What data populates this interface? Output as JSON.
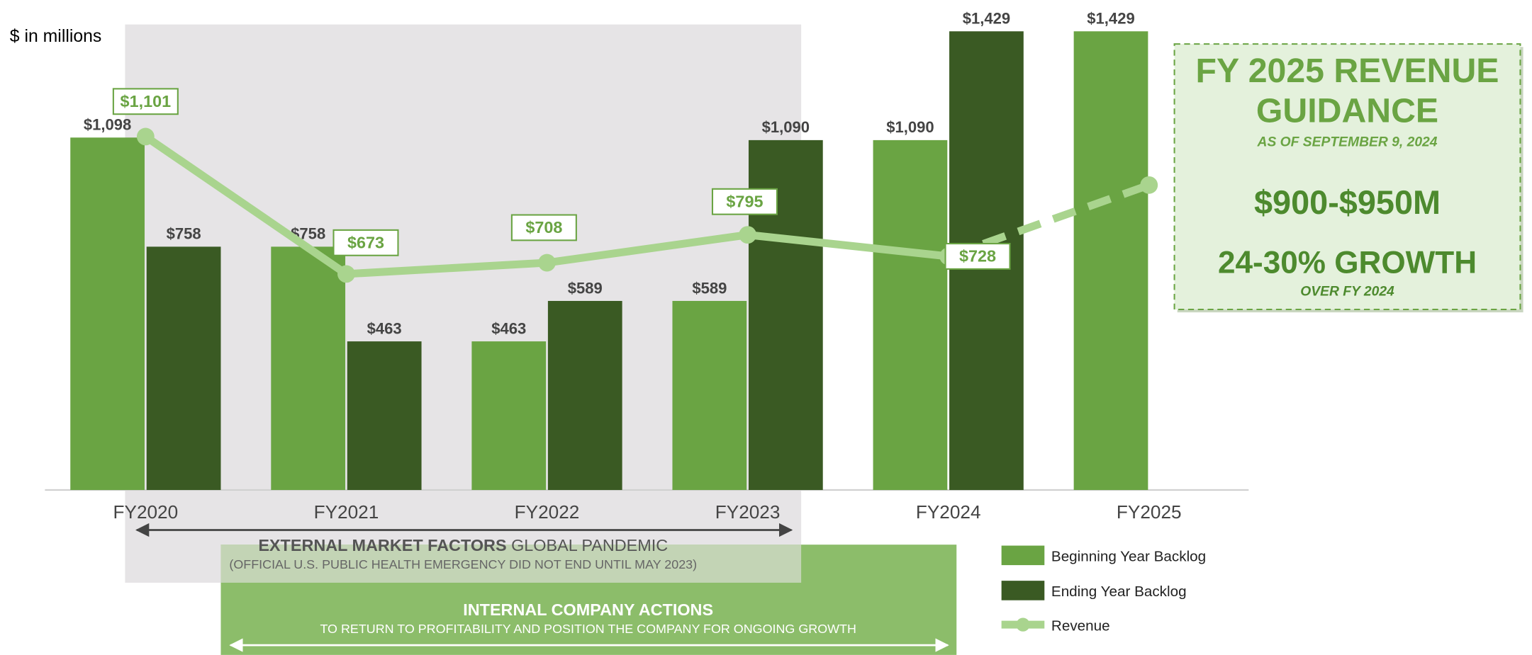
{
  "chart_data": {
    "type": "bar",
    "units_label": "$ in millions",
    "categories": [
      "FY2020",
      "FY2021",
      "FY2022",
      "FY2023",
      "FY2024",
      "FY2025"
    ],
    "ylim": [
      0,
      1500
    ],
    "series": [
      {
        "name": "Beginning Year Backlog",
        "color": "#6aa443",
        "type": "bar",
        "values": [
          1098,
          758,
          463,
          589,
          1090,
          1429
        ],
        "value_labels": [
          "$1,098",
          "$758",
          "$463",
          "$589",
          "$1,090",
          "$1,429"
        ]
      },
      {
        "name": "Ending Year Backlog",
        "color": "#3a5a23",
        "type": "bar",
        "values": [
          758,
          463,
          589,
          1090,
          1429,
          null
        ],
        "value_labels": [
          "$758",
          "$463",
          "$589",
          "$1,090",
          "$1,429",
          null
        ]
      },
      {
        "name": "Revenue",
        "color": "#a9d48e",
        "type": "line",
        "dashed_after_index": 4,
        "values": [
          1101,
          673,
          708,
          795,
          728,
          950
        ],
        "value_labels": [
          "$1,101",
          "$673",
          "$708",
          "$795",
          "$728",
          null
        ]
      }
    ],
    "annotations": {
      "external": {
        "bold": "EXTERNAL MARKET FACTORS",
        "text": "GLOBAL PANDEMIC",
        "note": "(OFFICIAL U.S. PUBLIC HEALTH EMERGENCY DID NOT END UNTIL MAY 2023)"
      },
      "internal": {
        "bold": "INTERNAL COMPANY ACTIONS",
        "note": "TO RETURN TO PROFITABILITY AND POSITION THE COMPANY FOR ONGOING GROWTH"
      }
    },
    "guidance": {
      "title_lines": [
        "FY 2025 REVENUE",
        "GUIDANCE"
      ],
      "as_of": "AS OF SEPTEMBER 9, 2024",
      "range": "$900-$950M",
      "growth": "24-30% GROWTH",
      "growth_note": "OVER FY 2024"
    }
  }
}
